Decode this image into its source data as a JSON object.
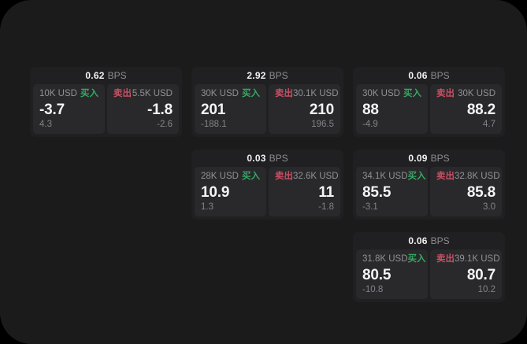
{
  "page": {
    "background": "#000000",
    "surface_color": "#1b1b1c"
  },
  "colors": {
    "card_base": "#202022",
    "panel": "#29292b",
    "text_primary": "#f4f4f5",
    "text_secondary": "#919196",
    "text_tertiary": "#838389",
    "buy_green": "#35a863",
    "sell_red": "#c94f63"
  },
  "labels": {
    "bps_unit": "BPS",
    "buy": "买入",
    "sell": "卖出"
  },
  "cards": [
    {
      "row": 1,
      "col": 1,
      "bps": "0.62",
      "buy": {
        "amount": "10K USD",
        "value": "-3.7",
        "delta": "4.3"
      },
      "sell": {
        "amount": "5.5K USD",
        "value": "-1.8",
        "delta": "-2.6"
      }
    },
    {
      "row": 1,
      "col": 2,
      "bps": "2.92",
      "buy": {
        "amount": "30K USD",
        "value": "201",
        "delta": "-188.1"
      },
      "sell": {
        "amount": "30.1K USD",
        "value": "210",
        "delta": "196.5"
      }
    },
    {
      "row": 1,
      "col": 3,
      "bps": "0.06",
      "buy": {
        "amount": "30K USD",
        "value": "88",
        "delta": "-4.9"
      },
      "sell": {
        "amount": "30K USD",
        "value": "88.2",
        "delta": "4.7"
      }
    },
    {
      "row": 2,
      "col": 2,
      "bps": "0.03",
      "buy": {
        "amount": "28K USD",
        "value": "10.9",
        "delta": "1.3"
      },
      "sell": {
        "amount": "32.6K USD",
        "value": "11",
        "delta": "-1.8"
      }
    },
    {
      "row": 2,
      "col": 3,
      "bps": "0.09",
      "buy": {
        "amount": "34.1K USD",
        "value": "85.5",
        "delta": "-3.1"
      },
      "sell": {
        "amount": "32.8K USD",
        "value": "85.8",
        "delta": "3.0"
      }
    },
    {
      "row": 3,
      "col": 3,
      "bps": "0.06",
      "buy": {
        "amount": "31.8K USD",
        "value": "80.5",
        "delta": "-10.8"
      },
      "sell": {
        "amount": "39.1K USD",
        "value": "80.7",
        "delta": "10.2"
      }
    }
  ]
}
